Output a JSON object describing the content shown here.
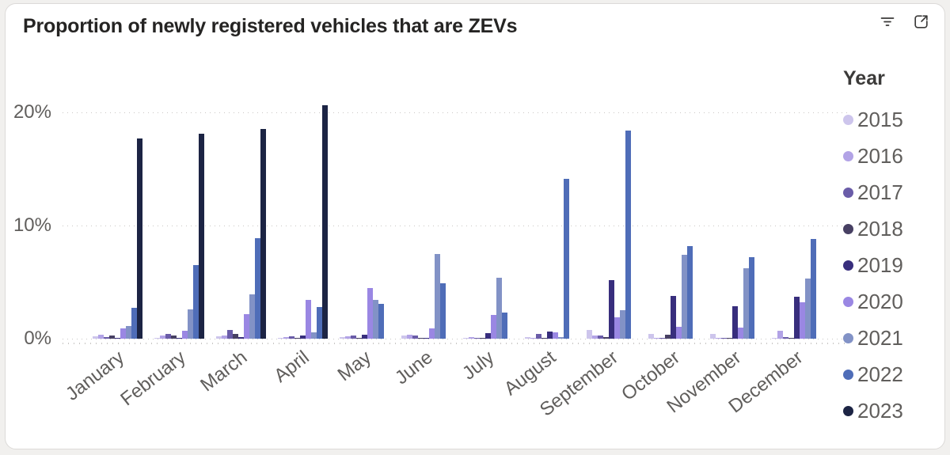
{
  "header": {
    "title": "Proportion of newly registered vehicles that are ZEVs",
    "icons": [
      {
        "name": "filter-icon"
      },
      {
        "name": "focus-mode-icon"
      }
    ]
  },
  "chart_data": {
    "type": "bar",
    "title": "Proportion of newly registered vehicles that are ZEVs",
    "categories": [
      "January",
      "February",
      "March",
      "April",
      "May",
      "June",
      "July",
      "August",
      "September",
      "October",
      "November",
      "December"
    ],
    "series": [
      {
        "name": "2015",
        "color": "#cdc5ec",
        "values": [
          0.2,
          0.1,
          0.2,
          0.1,
          0.15,
          0.25,
          0.1,
          0.15,
          0.75,
          0.45,
          0.4,
          0.05
        ]
      },
      {
        "name": "2016",
        "color": "#b2a3e6",
        "values": [
          0.35,
          0.25,
          0.3,
          0.15,
          0.2,
          0.35,
          0.15,
          0.1,
          0.3,
          0.1,
          0.1,
          0.7
        ]
      },
      {
        "name": "2017",
        "color": "#6a5ca8",
        "values": [
          0.15,
          0.4,
          0.8,
          0.2,
          0.3,
          0.3,
          0.1,
          0.4,
          0.3,
          0.1,
          0.05,
          0.15
        ]
      },
      {
        "name": "2018",
        "color": "#474063",
        "values": [
          0.25,
          0.25,
          0.4,
          0.1,
          0.1,
          0.1,
          0.05,
          0.05,
          0.15,
          0.35,
          0.1,
          0.1
        ]
      },
      {
        "name": "2019",
        "color": "#382e7d",
        "values": [
          0.1,
          0.1,
          0.15,
          0.3,
          0.35,
          0.05,
          0.5,
          0.6,
          5.2,
          3.8,
          2.9,
          3.7
        ]
      },
      {
        "name": "2020",
        "color": "#9a87e3",
        "values": [
          0.9,
          0.7,
          2.2,
          3.4,
          4.5,
          0.9,
          2.1,
          0.55,
          1.9,
          1.05,
          1.0,
          3.2
        ]
      },
      {
        "name": "2021",
        "color": "#8292c6",
        "values": [
          1.1,
          2.6,
          3.9,
          0.55,
          3.4,
          7.5,
          5.4,
          0.15,
          2.5,
          7.4,
          6.2,
          5.3
        ]
      },
      {
        "name": "2022",
        "color": "#4f6db8",
        "values": [
          2.7,
          6.5,
          8.9,
          2.8,
          3.1,
          4.9,
          2.3,
          14.1,
          18.4,
          8.2,
          7.2,
          8.8
        ]
      },
      {
        "name": "2023",
        "color": "#1c2444",
        "values": [
          17.7,
          18.1,
          18.5,
          20.6,
          0,
          0,
          0,
          0,
          0,
          0,
          0,
          0
        ]
      }
    ],
    "y_ticks": [
      {
        "label": "0%",
        "value": 0
      },
      {
        "label": "10%",
        "value": 10
      },
      {
        "label": "20%",
        "value": 20
      }
    ],
    "ylim": [
      0,
      21.8
    ],
    "xlabel": "",
    "ylabel": "",
    "grid": "horizontal-dotted",
    "legend": {
      "title": "Year",
      "position": "right"
    }
  }
}
